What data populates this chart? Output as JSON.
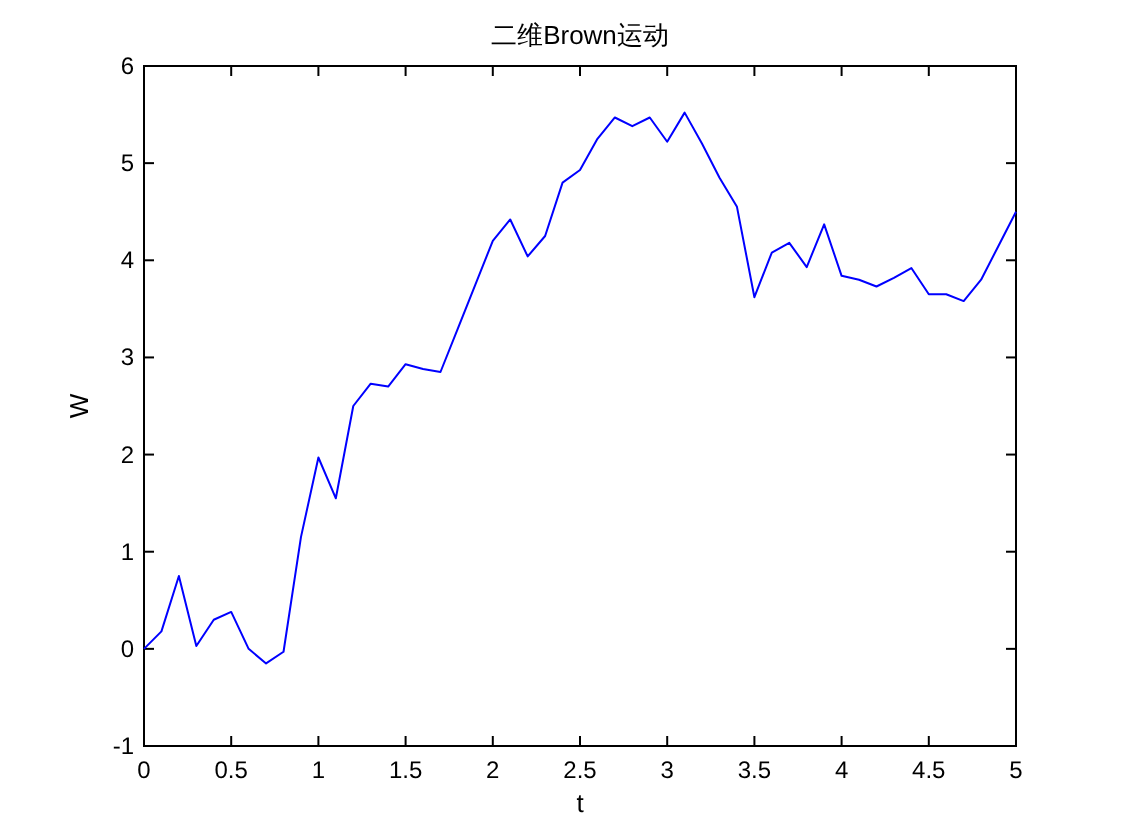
{
  "chart_data": {
    "type": "line",
    "title": "二维Brown运动",
    "xlabel": "t",
    "ylabel": "W",
    "x": [
      0,
      0.1,
      0.2,
      0.3,
      0.4,
      0.5,
      0.6,
      0.7,
      0.8,
      0.9,
      1.0,
      1.1,
      1.2,
      1.3,
      1.4,
      1.5,
      1.6,
      1.7,
      1.8,
      1.9,
      2.0,
      2.1,
      2.2,
      2.3,
      2.4,
      2.5,
      2.6,
      2.7,
      2.8,
      2.9,
      3.0,
      3.1,
      3.2,
      3.3,
      3.4,
      3.5,
      3.6,
      3.7,
      3.8,
      3.9,
      4.0,
      4.1,
      4.2,
      4.3,
      4.4,
      4.5,
      4.6,
      4.7,
      4.8,
      4.9,
      5.0
    ],
    "series": [
      {
        "color": "#0000ff",
        "values": [
          0,
          0.18,
          0.75,
          0.03,
          0.3,
          0.38,
          0.0,
          -0.15,
          -0.03,
          1.15,
          1.97,
          1.55,
          2.5,
          2.73,
          2.7,
          2.93,
          2.88,
          2.85,
          3.3,
          3.75,
          4.2,
          4.42,
          4.04,
          4.25,
          4.8,
          4.93,
          5.25,
          5.47,
          5.38,
          5.47,
          5.22,
          5.52,
          5.2,
          4.85,
          4.55,
          3.62,
          4.08,
          4.18,
          3.93,
          4.37,
          3.84,
          3.8,
          3.73,
          3.82,
          3.92,
          3.65,
          3.65,
          3.58,
          3.8,
          4.15,
          4.5
        ]
      }
    ],
    "xlim": [
      0,
      5
    ],
    "ylim": [
      -1,
      6
    ],
    "xticks": [
      0,
      0.5,
      1,
      1.5,
      2,
      2.5,
      3,
      3.5,
      4,
      4.5,
      5
    ],
    "yticks": [
      -1,
      0,
      1,
      2,
      3,
      4,
      5,
      6
    ]
  }
}
